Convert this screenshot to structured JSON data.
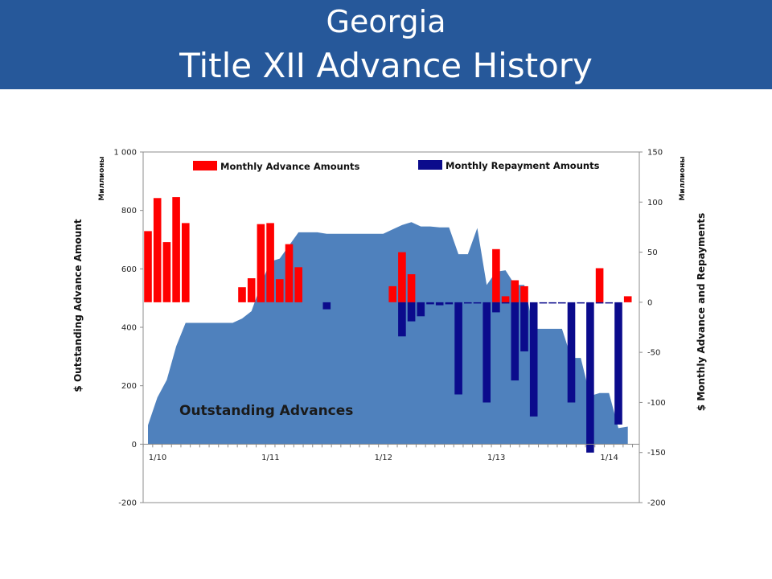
{
  "title": {
    "line1": "Georgia",
    "line2": "Title XII Advance History"
  },
  "chart_data": {
    "type": "bar",
    "x_tick_labels": [
      "1/10",
      "1/11",
      "1/12",
      "1/13",
      "1/14"
    ],
    "left_axis": {
      "label": "$ Outstanding Advance Amount",
      "unit_label": "Миллионы",
      "ylim": [
        -200,
        1000
      ],
      "ticks": [
        -200,
        0,
        200,
        400,
        600,
        800,
        1000
      ],
      "tick_labels": [
        "-200",
        "0",
        "200",
        "400",
        "600",
        "800",
        "1 000"
      ]
    },
    "right_axis": {
      "label": "$ Monthly Advance and Repayments",
      "unit_label": "Миллионы",
      "ylim": [
        -200,
        150
      ],
      "ticks": [
        -200,
        -150,
        -100,
        -50,
        0,
        50,
        100,
        150
      ],
      "tick_labels": [
        "-200",
        "-150",
        "-100",
        "-50",
        "0",
        "50",
        "100",
        "150"
      ]
    },
    "area": {
      "name": "Outstanding Advances",
      "color": "#4f81bd",
      "axis": "left",
      "x": [
        0,
        1,
        2,
        3,
        4,
        5,
        6,
        7,
        8,
        9,
        10,
        11,
        12,
        13,
        14,
        15,
        16,
        17,
        18,
        19,
        20,
        21,
        22,
        23,
        24,
        25,
        26,
        27,
        28,
        29,
        30,
        31,
        32,
        33,
        34,
        35,
        36,
        37,
        38,
        39,
        40,
        41,
        42,
        43,
        44,
        45,
        46,
        47,
        48,
        49,
        50,
        51
      ],
      "values": [
        65,
        160,
        220,
        335,
        415,
        415,
        415,
        415,
        415,
        415,
        430,
        455,
        545,
        625,
        635,
        680,
        725,
        725,
        725,
        720,
        720,
        720,
        720,
        720,
        720,
        720,
        735,
        750,
        760,
        745,
        745,
        742,
        742,
        650,
        650,
        740,
        545,
        590,
        595,
        545,
        545,
        395,
        395,
        395,
        395,
        295,
        295,
        165,
        175,
        175,
        55,
        60
      ]
    },
    "series": [
      {
        "name": "Monthly Advance Amounts",
        "color": "#ff0000",
        "axis": "right",
        "x": [
          0,
          1,
          2,
          3,
          4,
          10,
          11,
          12,
          13,
          14,
          15,
          16,
          26,
          27,
          28,
          37,
          38,
          39,
          40,
          48,
          51
        ],
        "values": [
          71,
          104,
          60,
          105,
          79,
          15,
          24,
          78,
          79,
          23,
          58,
          35,
          16,
          50,
          28,
          53,
          6,
          22,
          16,
          34,
          6
        ]
      },
      {
        "name": "Monthly Repayment Amounts",
        "color": "#0b0b8c",
        "axis": "right",
        "x": [
          19,
          27,
          28,
          29,
          30,
          31,
          32,
          33,
          34,
          35,
          36,
          37,
          38,
          39,
          40,
          41,
          42,
          43,
          44,
          45,
          46,
          47,
          48,
          49,
          50
        ],
        "values": [
          -7,
          -34,
          -19,
          -14,
          -2,
          -3,
          -2,
          -92,
          -1,
          -1,
          -100,
          -10,
          -1,
          -78,
          -49,
          -114,
          -1,
          -1,
          -1,
          -100,
          -1,
          -150,
          -1,
          -1,
          -122
        ]
      }
    ],
    "legend": [
      "Monthly Advance Amounts",
      "Monthly Repayment Amounts"
    ],
    "annotation": "Outstanding Advances"
  }
}
